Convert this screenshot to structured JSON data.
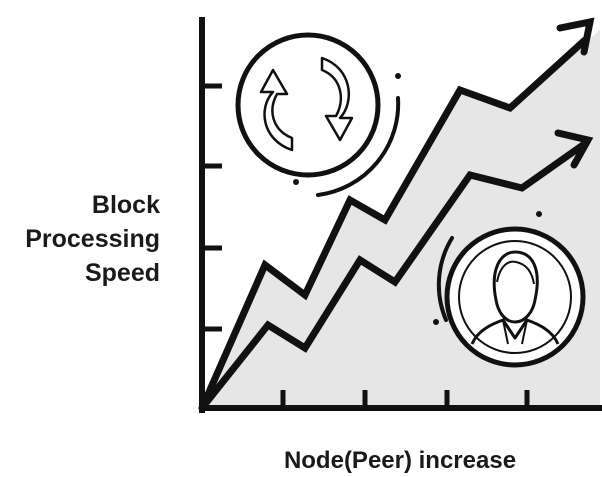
{
  "y_axis": {
    "label_lines": [
      "Block",
      "Processing",
      "Speed"
    ]
  },
  "x_axis": {
    "label": "Node(Peer) increase"
  },
  "icons": {
    "top": "sync-arrows-icon",
    "bottom": "user-person-icon"
  },
  "colors": {
    "ink": "#111111",
    "area_fill": "#e6e6e6",
    "background": "#ffffff"
  }
}
